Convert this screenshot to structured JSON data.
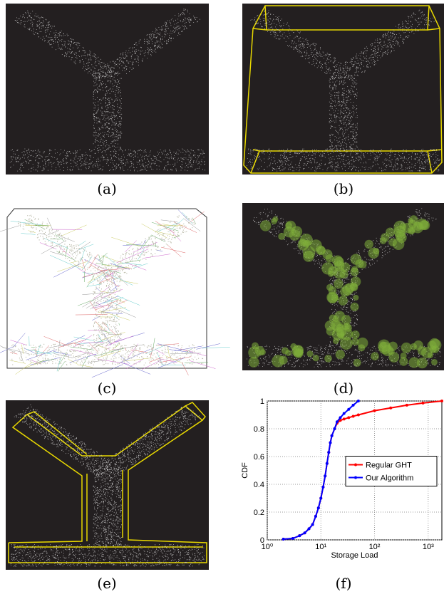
{
  "panels": [
    {
      "caption": "(a)"
    },
    {
      "caption": "(b)"
    },
    {
      "caption": "(c)"
    },
    {
      "caption": "(d)"
    },
    {
      "caption": "(e)"
    },
    {
      "caption": "(f)"
    }
  ],
  "chart_data": {
    "type": "line",
    "xlabel": "Storage Load",
    "ylabel": "CDF",
    "xscale": "log",
    "grid": true,
    "legend": "center right",
    "x": [
      2,
      3,
      4,
      5,
      6,
      7,
      8,
      9,
      10,
      11,
      12,
      13,
      14,
      15,
      16,
      18,
      20,
      23,
      27,
      33,
      40,
      50,
      100,
      200,
      400,
      800,
      1800
    ],
    "series": [
      {
        "name": "Regular GHT",
        "color": "#ff0000",
        "values": [
          0.005,
          0.01,
          0.03,
          0.05,
          0.08,
          0.11,
          0.17,
          0.23,
          0.3,
          0.38,
          0.46,
          0.55,
          0.63,
          0.7,
          0.75,
          0.8,
          0.84,
          0.86,
          0.87,
          0.88,
          0.89,
          0.9,
          0.93,
          0.95,
          0.97,
          0.985,
          1.0
        ]
      },
      {
        "name": "Our Algorithm",
        "color": "#0000ff",
        "values": [
          0.005,
          0.01,
          0.03,
          0.05,
          0.08,
          0.11,
          0.17,
          0.23,
          0.3,
          0.38,
          0.46,
          0.55,
          0.63,
          0.7,
          0.75,
          0.8,
          0.85,
          0.88,
          0.91,
          0.94,
          0.97,
          1.0,
          null,
          null,
          null,
          null,
          null
        ]
      }
    ],
    "xlim": [
      1,
      1800
    ],
    "ylim": [
      0,
      1
    ],
    "xticks": [
      {
        "value": 1,
        "label": "10⁰"
      },
      {
        "value": 10,
        "label": "10¹"
      },
      {
        "value": 100,
        "label": "10²"
      },
      {
        "value": 1000,
        "label": "10³"
      }
    ],
    "yticks": [
      0,
      0.2,
      0.4,
      0.6,
      0.8,
      1
    ]
  }
}
